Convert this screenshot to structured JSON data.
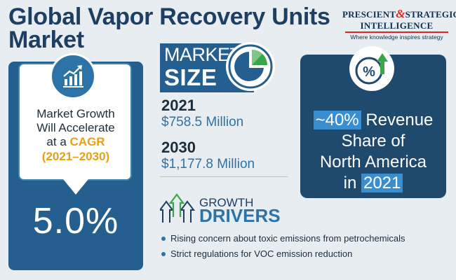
{
  "title": {
    "line1": "Global Vapor Recovery Units",
    "line2": "Market"
  },
  "logo": {
    "word1": "PRESCIENT",
    "amp": "&",
    "word2": "STRATEGIC",
    "word3": "INTELLIGENCE",
    "tagline": "Where knowledge inspires strategy"
  },
  "growth": {
    "line1": "Market Growth",
    "line2": "Will Accelerate",
    "line3_prefix": "at a ",
    "line3_cagr": "CAGR",
    "years": "(2021–2030)",
    "value": "5.0%",
    "icon": "growth-chart-icon"
  },
  "market_size": {
    "label1": "MARKET",
    "label2": "SIZE",
    "icon": "pie-chart-icon",
    "entries": [
      {
        "year": "2021",
        "value": "$758.5 Million"
      },
      {
        "year": "2030",
        "value": "$1,177.8 Million"
      }
    ]
  },
  "revenue_share": {
    "icon": "percent-up-icon",
    "value": "~40%",
    "line1_rest": " Revenue",
    "line2": "Share of",
    "line3": "North America",
    "line4_prefix": "in ",
    "year": "2021"
  },
  "drivers": {
    "label1": "GROWTH",
    "label2": "DRIVERS",
    "icon": "growth-arrows-icon",
    "items": [
      "Rising concern about toxic emissions from petrochemicals",
      "Strict regulations for VOC emission reduction"
    ]
  },
  "colors": {
    "navy": "#1d3f63",
    "blue": "#245f90",
    "accent_orange": "#e8a016",
    "accent_green": "#3aa64a",
    "logo_red": "#e02323"
  }
}
